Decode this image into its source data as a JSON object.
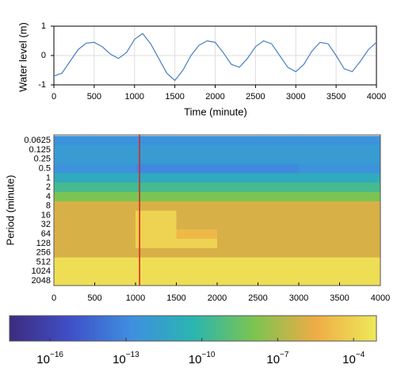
{
  "chart_data": [
    {
      "type": "line",
      "xlabel": "Time (minute)",
      "ylabel": "Water level (m)",
      "x": [
        0,
        100,
        200,
        300,
        400,
        500,
        600,
        700,
        800,
        900,
        1000,
        1100,
        1200,
        1300,
        1400,
        1500,
        1600,
        1700,
        1800,
        1900,
        2000,
        2100,
        2200,
        2300,
        2400,
        2500,
        2600,
        2700,
        2800,
        2900,
        3000,
        3100,
        3200,
        3300,
        3400,
        3500,
        3600,
        3700,
        3800,
        3900,
        4000
      ],
      "series": [
        {
          "color": "#4a7fc1",
          "values": [
            -0.7,
            -0.6,
            -0.2,
            0.2,
            0.42,
            0.45,
            0.3,
            0.05,
            -0.1,
            0.1,
            0.55,
            0.75,
            0.4,
            -0.1,
            -0.6,
            -0.85,
            -0.5,
            0,
            0.35,
            0.5,
            0.45,
            0.1,
            -0.3,
            -0.4,
            -0.1,
            0.3,
            0.5,
            0.4,
            0,
            -0.4,
            -0.55,
            -0.3,
            0.15,
            0.45,
            0.4,
            0,
            -0.45,
            -0.55,
            -0.2,
            0.2,
            0.45
          ]
        }
      ],
      "xlim": [
        0,
        4000
      ],
      "xticks": [
        0,
        500,
        1000,
        1500,
        2000,
        2500,
        3000,
        3500,
        4000
      ],
      "ylim": [
        -1,
        1
      ],
      "yticks": [
        -1,
        0,
        1
      ],
      "grid": true
    },
    {
      "type": "heatmap",
      "ylabel": "Period (minute)",
      "x_edges": [
        0,
        500,
        1000,
        1500,
        2000,
        2500,
        3000,
        3500,
        4000
      ],
      "periods": [
        0.0625,
        0.125,
        0.25,
        0.5,
        1,
        2,
        4,
        8,
        16,
        32,
        64,
        128,
        256,
        512,
        1024,
        2048
      ],
      "z": [
        [
          3e-13,
          3e-13,
          3e-13,
          3e-13,
          3e-13,
          3e-13,
          3e-13,
          3e-13
        ],
        [
          1e-12,
          1e-12,
          1e-12,
          1e-12,
          1e-12,
          1e-12,
          1e-12,
          1e-12
        ],
        [
          1e-12,
          1e-12,
          1e-12,
          1e-12,
          1e-12,
          1e-12,
          1e-12,
          1e-12
        ],
        [
          3e-13,
          3e-13,
          1e-13,
          1e-13,
          1e-13,
          1e-13,
          3e-13,
          3e-13
        ],
        [
          1e-11,
          1e-11,
          1e-11,
          1e-11,
          1e-11,
          1e-11,
          1e-11,
          1e-11
        ],
        [
          3e-10,
          3e-10,
          3e-10,
          3e-10,
          3e-10,
          3e-10,
          3e-10,
          3e-10
        ],
        [
          1e-08,
          1e-08,
          1e-08,
          1e-08,
          1e-08,
          1e-08,
          1e-08,
          1e-08
        ],
        [
          1e-06,
          1e-06,
          1e-06,
          1e-06,
          1e-06,
          1e-06,
          1e-06,
          1e-06
        ],
        [
          1e-06,
          1e-06,
          0.0001,
          1e-06,
          1e-06,
          1e-06,
          1e-06,
          1e-06
        ],
        [
          1e-06,
          1e-06,
          0.0001,
          1e-06,
          1e-06,
          1e-06,
          1e-06,
          1e-06
        ],
        [
          1e-06,
          1e-06,
          0.0001,
          1e-05,
          1e-06,
          1e-06,
          1e-06,
          1e-06
        ],
        [
          1e-06,
          1e-06,
          0.0001,
          0.0001,
          1e-06,
          1e-06,
          1e-06,
          1e-06
        ],
        [
          1e-06,
          1e-06,
          1e-06,
          1e-06,
          1e-06,
          1e-06,
          1e-06,
          1e-06
        ],
        [
          0.0003,
          0.0003,
          0.0003,
          0.0003,
          0.0003,
          0.0003,
          0.0003,
          0.0003
        ],
        [
          0.0003,
          0.0003,
          0.0003,
          0.0003,
          0.0003,
          0.0003,
          0.0003,
          0.0003
        ],
        [
          0.0003,
          0.0003,
          0.0003,
          0.0003,
          0.0003,
          0.0003,
          0.0003,
          0.0003
        ]
      ],
      "xlim": [
        0,
        4000
      ],
      "xticks": [
        0,
        500,
        1000,
        1500,
        2000,
        2500,
        3000,
        3500,
        4000
      ],
      "ylim": [
        0.041,
        2896
      ],
      "yscale": "log2",
      "marker_x": 1050,
      "marker_color": "#e02020",
      "colormap": [
        "#3d2b7f",
        "#3f50c8",
        "#3f8fe0",
        "#2ab5b0",
        "#7cc450",
        "#eeac45",
        "#eee95a"
      ],
      "clim": [
        2.5e-18,
        0.0008
      ],
      "cticks": [
        {
          "value": 1e-16,
          "label": "10",
          "exponent": "−16"
        },
        {
          "value": 1e-13,
          "label": "10",
          "exponent": "−13"
        },
        {
          "value": 1e-10,
          "label": "10",
          "exponent": "−10"
        },
        {
          "value": 1e-07,
          "label": "10",
          "exponent": "−7"
        },
        {
          "value": 0.0001,
          "label": "10",
          "exponent": "−4"
        }
      ]
    }
  ]
}
